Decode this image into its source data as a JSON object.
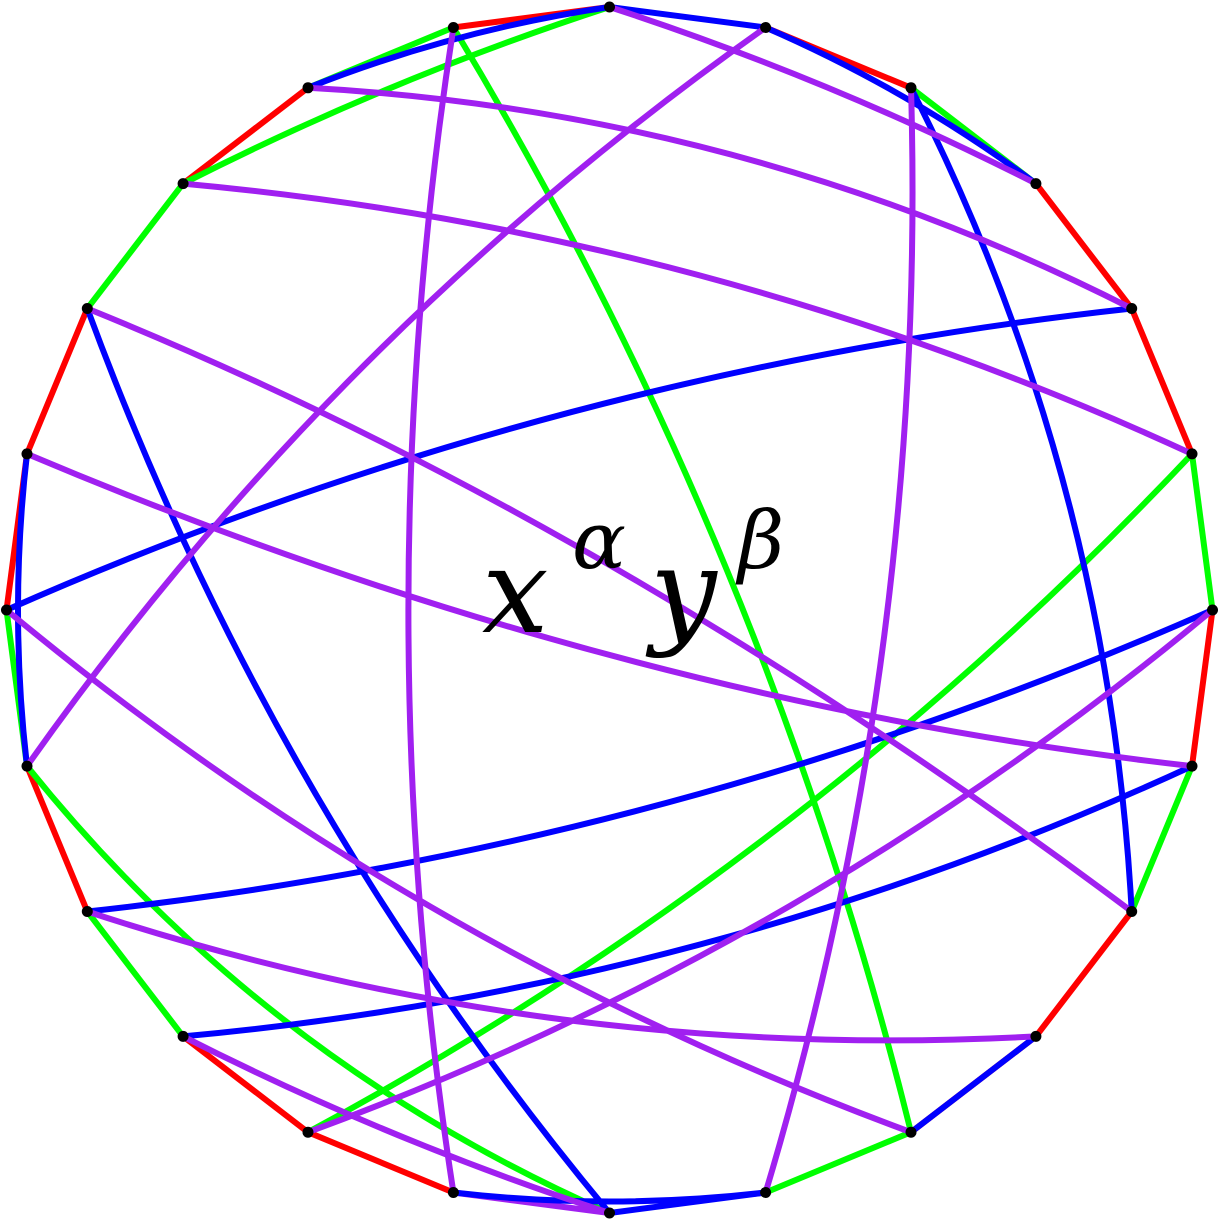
{
  "label": {
    "base_x": "x",
    "exp_x": "α",
    "base_y": "y",
    "exp_y": "β"
  },
  "colors": {
    "red": "#ff0000",
    "green": "#00ff00",
    "blue": "#0000ff",
    "purple": "#a020f0",
    "vertex": "#000000"
  },
  "graph": {
    "vertex_count": 24,
    "edges": [
      {
        "from": 0,
        "to": 1,
        "color": "blue"
      },
      {
        "from": 1,
        "to": 2,
        "color": "red"
      },
      {
        "from": 2,
        "to": 3,
        "color": "green"
      },
      {
        "from": 3,
        "to": 4,
        "color": "red"
      },
      {
        "from": 4,
        "to": 5,
        "color": "red"
      },
      {
        "from": 5,
        "to": 6,
        "color": "green"
      },
      {
        "from": 6,
        "to": 7,
        "color": "red"
      },
      {
        "from": 7,
        "to": 8,
        "color": "green"
      },
      {
        "from": 8,
        "to": 9,
        "color": "red"
      },
      {
        "from": 9,
        "to": 10,
        "color": "red"
      },
      {
        "from": 10,
        "to": 11,
        "color": "green"
      },
      {
        "from": 11,
        "to": 12,
        "color": "blue"
      },
      {
        "from": 12,
        "to": 13,
        "color": "purple"
      },
      {
        "from": 13,
        "to": 14,
        "color": "red"
      },
      {
        "from": 14,
        "to": 15,
        "color": "red"
      },
      {
        "from": 15,
        "to": 16,
        "color": "green"
      },
      {
        "from": 16,
        "to": 17,
        "color": "red"
      },
      {
        "from": 17,
        "to": 18,
        "color": "green"
      },
      {
        "from": 18,
        "to": 19,
        "color": "red"
      },
      {
        "from": 19,
        "to": 20,
        "color": "red"
      },
      {
        "from": 20,
        "to": 21,
        "color": "green"
      },
      {
        "from": 21,
        "to": 22,
        "color": "red"
      },
      {
        "from": 22,
        "to": 23,
        "color": "green"
      },
      {
        "from": 23,
        "to": 0,
        "color": "red"
      },
      {
        "from": 0,
        "to": 21,
        "color": "green"
      },
      {
        "from": 23,
        "to": 10,
        "color": "green"
      },
      {
        "from": 14,
        "to": 5,
        "color": "green"
      },
      {
        "from": 17,
        "to": 12,
        "color": "green"
      },
      {
        "from": 1,
        "to": 3,
        "color": "blue"
      },
      {
        "from": 22,
        "to": 0,
        "color": "blue"
      },
      {
        "from": 19,
        "to": 17,
        "color": "blue"
      },
      {
        "from": 16,
        "to": 6,
        "color": "blue"
      },
      {
        "from": 18,
        "to": 4,
        "color": "blue"
      },
      {
        "from": 15,
        "to": 7,
        "color": "blue"
      },
      {
        "from": 2,
        "to": 8,
        "color": "blue"
      },
      {
        "from": 20,
        "to": 12,
        "color": "blue"
      },
      {
        "from": 9,
        "to": 10,
        "color": "blue"
      },
      {
        "from": 11,
        "to": 13,
        "color": "blue"
      },
      {
        "from": 0,
        "to": 3,
        "color": "purple"
      },
      {
        "from": 22,
        "to": 4,
        "color": "purple"
      },
      {
        "from": 21,
        "to": 5,
        "color": "purple"
      },
      {
        "from": 20,
        "to": 8,
        "color": "purple"
      },
      {
        "from": 2,
        "to": 11,
        "color": "purple"
      },
      {
        "from": 19,
        "to": 7,
        "color": "purple"
      },
      {
        "from": 18,
        "to": 10,
        "color": "purple"
      },
      {
        "from": 17,
        "to": 1,
        "color": "purple"
      },
      {
        "from": 16,
        "to": 9,
        "color": "purple"
      },
      {
        "from": 15,
        "to": 12,
        "color": "purple"
      },
      {
        "from": 14,
        "to": 6,
        "color": "purple"
      },
      {
        "from": 13,
        "to": 23,
        "color": "purple"
      }
    ]
  }
}
